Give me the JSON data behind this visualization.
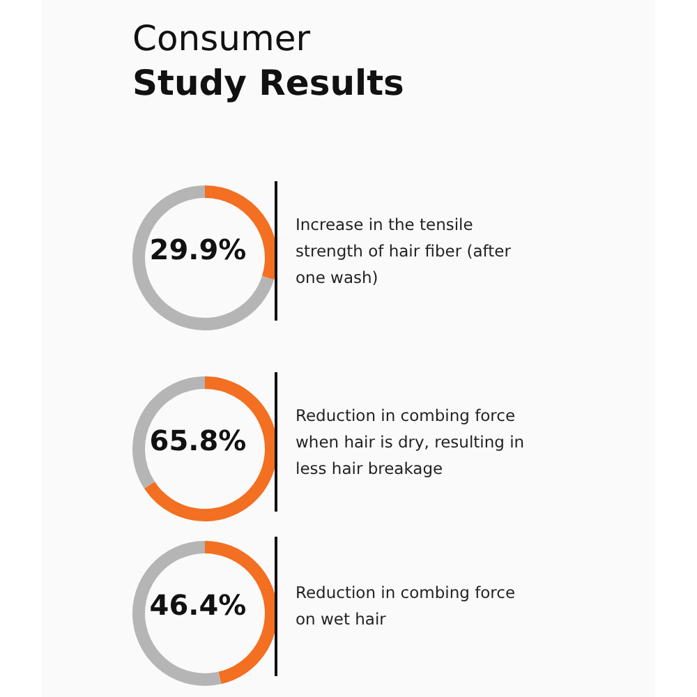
{
  "chart_data": [
    {
      "type": "donut",
      "title": "Consumer Study Results",
      "categories": [
        null,
        null
      ],
      "values": [
        29.9,
        70.1
      ],
      "colors": [
        "#f36f21",
        "#b5b5b5"
      ],
      "annotations": [
        "29.9%",
        "Increase in the tensile strength of hair fiber (after one wash)"
      ]
    },
    {
      "type": "donut",
      "categories": [
        null,
        null
      ],
      "values": [
        65.8,
        34.2
      ],
      "colors": [
        "#f36f21",
        "#b5b5b5"
      ],
      "annotations": [
        "65.8%",
        "Reduction in combing force when hair is dry, resulting in less hair breakage"
      ]
    },
    {
      "type": "donut",
      "categories": [
        null,
        null
      ],
      "values": [
        46.4,
        53.6
      ],
      "colors": [
        "#f36f21",
        "#b5b5b5"
      ],
      "annotations": [
        "46.4%",
        "Reduction in combing force on wet hair"
      ]
    }
  ]
}
